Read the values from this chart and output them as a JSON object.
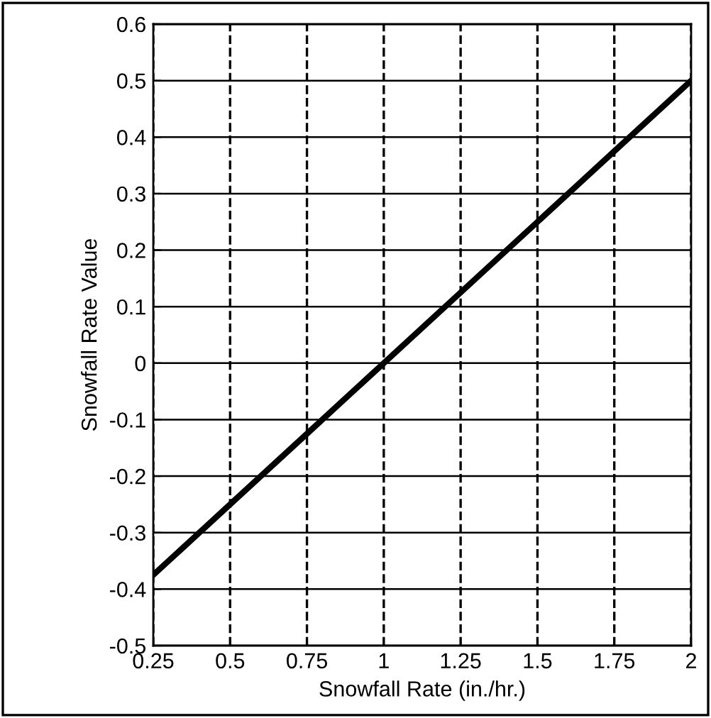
{
  "chart_data": {
    "type": "line",
    "xlabel": "Snowfall Rate (in./hr.)",
    "ylabel": "Snowfall Rate Value",
    "x": [
      0.25,
      0.5,
      0.75,
      1,
      1.25,
      1.5,
      1.75,
      2
    ],
    "series": [
      {
        "color": "#000000",
        "values": [
          -0.375,
          -0.25,
          -0.125,
          0,
          0.125,
          0.25,
          0.375,
          0.5
        ]
      }
    ],
    "xlim": [
      0.25,
      2
    ],
    "xticks": [
      0.25,
      0.5,
      0.75,
      1,
      1.25,
      1.5,
      1.75,
      2
    ],
    "ylim": [
      -0.5,
      0.6
    ],
    "yticks": [
      -0.5,
      -0.4,
      -0.3,
      -0.2,
      -0.1,
      0,
      0.1,
      0.2,
      0.3,
      0.4,
      0.5,
      0.6
    ],
    "grid": true,
    "marker": "none",
    "line_style": "solid"
  }
}
